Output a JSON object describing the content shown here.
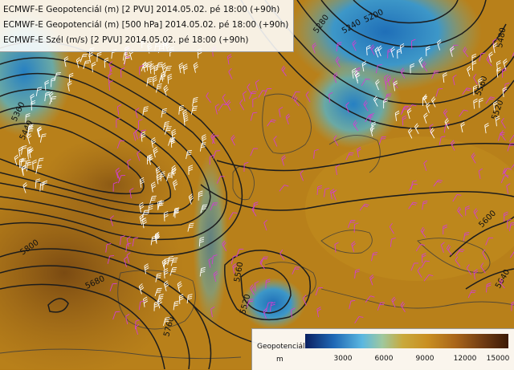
{
  "legend": {
    "lines": [
      "ECMWF-E Geopotenciál (m) [2 PVU] 2014.05.02. pé 18:00 (+90h)",
      "ECMWF-E Geopotenciál (m) [500 hPa] 2014.05.02. pé 18:00 (+90h)",
      "ECMWF-E Szél (m/s) [2 PVU] 2014.05.02. pé 18:00 (+90h)"
    ]
  },
  "colorbar": {
    "title": "Geopotenciál",
    "unit": "m",
    "ticks": [
      "3000",
      "6000",
      "9000",
      "12000",
      "15000"
    ],
    "range": [
      0,
      15000
    ]
  },
  "contours": {
    "labels": [
      "5240",
      "5200",
      "5280",
      "5560",
      "5600",
      "5480",
      "5520",
      "5800",
      "5760",
      "5680",
      "5360",
      "5440",
      "5640",
      "5520",
      "5560"
    ]
  },
  "colors": {
    "high_geopotential": "#b57c16",
    "low_geopotential": "#2e7fbf",
    "contour_line": "#1c1c1c",
    "wind_barb_magenta": "#d23fd0",
    "wind_barb_white": "#ffffff",
    "coastline": "#444444"
  }
}
